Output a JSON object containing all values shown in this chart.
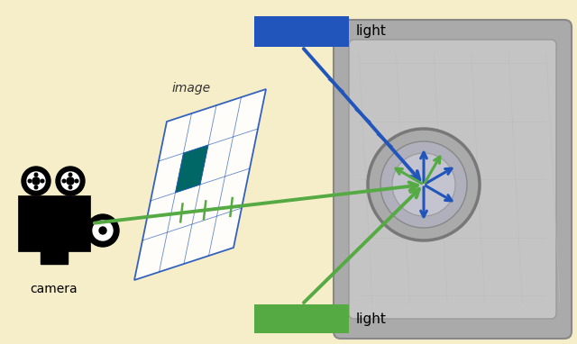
{
  "bg_color": "#F5EEC8",
  "blue_color": "#2255BB",
  "green_color": "#55AA44",
  "dark_blue": "#1144AA",
  "sensor_outer_color": "#AAAAAA",
  "sensor_inner_color": "#C4C4C4",
  "sensor_pad_color": "#D0D0D0",
  "lens_color": "#B0B0BC",
  "lens_inner_color": "#C4C4D0",
  "image_plane_label": "image",
  "camera_label": "camera",
  "light_label": "light",
  "lw_ray": 2.8,
  "fig_w": 6.4,
  "fig_h": 3.82
}
